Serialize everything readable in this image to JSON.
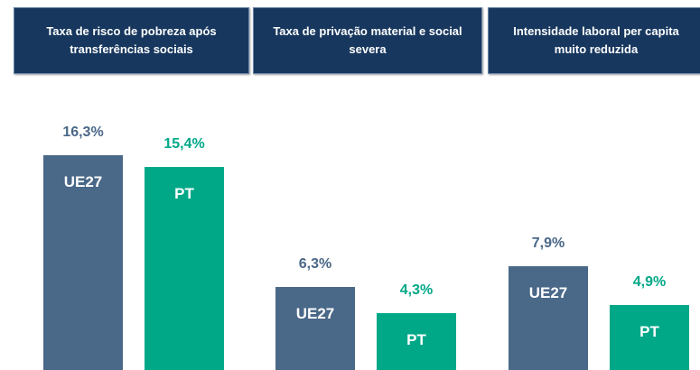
{
  "chart_data": {
    "type": "bar",
    "categories": [
      "Taxa de risco de pobreza após transferências sociais",
      "Taxa de privação material e social severa",
      "Intensidade laboral per capita muito reduzida"
    ],
    "series": [
      {
        "name": "UE27",
        "color": "#4a6888",
        "values": [
          16.3,
          6.3,
          7.9
        ],
        "value_labels": [
          "16,3%",
          "6,3%",
          "7,9%"
        ]
      },
      {
        "name": "PT",
        "color": "#00a888",
        "values": [
          15.4,
          4.3,
          4.9
        ],
        "value_labels": [
          "15,4%",
          "4,3%",
          "4,9%"
        ]
      }
    ]
  }
}
